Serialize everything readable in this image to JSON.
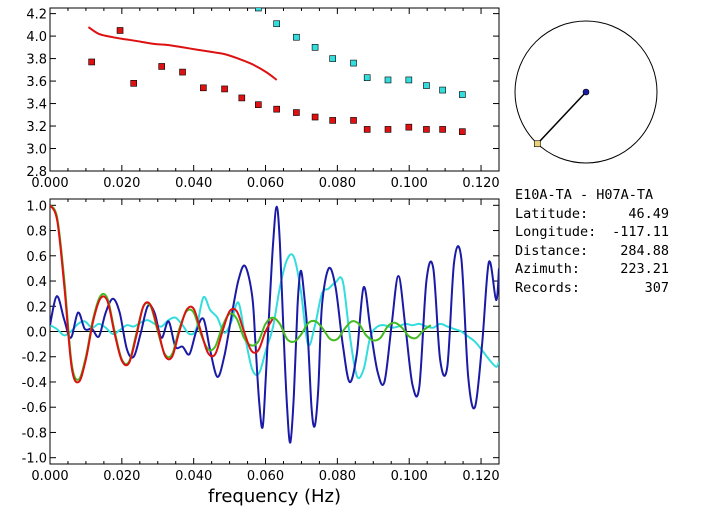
{
  "station_info": {
    "pair": "E10A-TA  -  H07A-TA",
    "rows": [
      {
        "label": "Latitude:",
        "value": "46.49"
      },
      {
        "label": "Longitude:",
        "value": "-117.11"
      },
      {
        "label": "Distance:",
        "value": "284.88"
      },
      {
        "label": "Azimuth:",
        "value": "223.21"
      },
      {
        "label": "Records:",
        "value": "307"
      }
    ]
  },
  "map_inset": {
    "azimuth_deg": 223.21,
    "colors": {
      "circle": "#000000",
      "center": "#1a1aa6",
      "end": "#e8d27a"
    }
  },
  "colors": {
    "red": "#dd1111",
    "cyan": "#33dddd",
    "blue": "#1a1aa6",
    "green": "#44bb22",
    "red_marker": "#cc1111",
    "cyan_marker": "#33dddd"
  },
  "chart_data": [
    {
      "type": "scatter",
      "xlim": [
        0.0,
        0.125
      ],
      "ylim": [
        2.8,
        4.25
      ],
      "x_ticks": [
        "0.000",
        "0.020",
        "0.040",
        "0.060",
        "0.080",
        "0.100",
        "0.120"
      ],
      "y_ticks": [
        "2.8",
        "3.0",
        "3.2",
        "3.4",
        "3.6",
        "3.8",
        "4.0",
        "4.2"
      ],
      "series": [
        {
          "marker": "square",
          "color": "red",
          "points": [
            [
              0.0116,
              3.77
            ],
            [
              0.0195,
              4.05
            ],
            [
              0.0233,
              3.58
            ],
            [
              0.0311,
              3.73
            ],
            [
              0.0369,
              3.68
            ],
            [
              0.0427,
              3.54
            ],
            [
              0.0486,
              3.53
            ],
            [
              0.0534,
              3.45
            ],
            [
              0.058,
              3.39
            ],
            [
              0.0631,
              3.35
            ],
            [
              0.0686,
              3.32
            ],
            [
              0.0738,
              3.28
            ],
            [
              0.0787,
              3.25
            ],
            [
              0.0845,
              3.25
            ],
            [
              0.0883,
              3.17
            ],
            [
              0.0941,
              3.17
            ],
            [
              0.0999,
              3.19
            ],
            [
              0.1048,
              3.17
            ],
            [
              0.1093,
              3.17
            ],
            [
              0.1148,
              3.15
            ]
          ]
        },
        {
          "marker": "square",
          "color": "cyan",
          "points": [
            [
              0.058,
              4.25
            ],
            [
              0.0631,
              4.11
            ],
            [
              0.0686,
              3.99
            ],
            [
              0.0738,
              3.9
            ],
            [
              0.0787,
              3.8
            ],
            [
              0.0845,
              3.76
            ],
            [
              0.0883,
              3.63
            ],
            [
              0.0941,
              3.61
            ],
            [
              0.0999,
              3.61
            ],
            [
              0.1048,
              3.56
            ],
            [
              0.1093,
              3.52
            ],
            [
              0.1148,
              3.48
            ]
          ]
        },
        {
          "marker": "line",
          "color": "red",
          "points": [
            [
              0.0107,
              4.08
            ],
            [
              0.0136,
              4.02
            ],
            [
              0.0175,
              3.99
            ],
            [
              0.0214,
              3.97
            ],
            [
              0.0253,
              3.95
            ],
            [
              0.0292,
              3.93
            ],
            [
              0.0331,
              3.92
            ],
            [
              0.0369,
              3.9
            ],
            [
              0.0408,
              3.88
            ],
            [
              0.0447,
              3.86
            ],
            [
              0.0486,
              3.84
            ],
            [
              0.0524,
              3.8
            ],
            [
              0.0563,
              3.75
            ],
            [
              0.0602,
              3.68
            ],
            [
              0.0631,
              3.61
            ]
          ]
        }
      ]
    },
    {
      "type": "line",
      "xlabel": "frequency (Hz)",
      "xlim": [
        0.0,
        0.125
      ],
      "ylim": [
        -1.05,
        1.05
      ],
      "x_ticks": [
        "0.000",
        "0.020",
        "0.040",
        "0.060",
        "0.080",
        "0.100",
        "0.120"
      ],
      "y_ticks": [
        "1.0",
        "0.8",
        "0.6",
        "0.4",
        "0.2",
        "0.0",
        "-0.2",
        "-0.4",
        "-0.6",
        "-0.8",
        "-1.0"
      ],
      "zero_line": true,
      "series": [
        {
          "color": "cyan",
          "x": [
            0.0,
            0.0019,
            0.0039,
            0.0058,
            0.0078,
            0.0097,
            0.0117,
            0.0136,
            0.0155,
            0.0175,
            0.0194,
            0.0214,
            0.0233,
            0.0252,
            0.0272,
            0.0291,
            0.031,
            0.033,
            0.0349,
            0.0369,
            0.0388,
            0.0407,
            0.0427,
            0.0446,
            0.0466,
            0.0485,
            0.0504,
            0.0524,
            0.0543,
            0.0563,
            0.0582,
            0.0601,
            0.0621,
            0.064,
            0.066,
            0.0679,
            0.0698,
            0.0718,
            0.0737,
            0.0757,
            0.0776,
            0.0795,
            0.0815,
            0.0834,
            0.0854,
            0.0873,
            0.0892,
            0.0912,
            0.0931,
            0.0951,
            0.097,
            0.0989,
            0.1009,
            0.1028,
            0.1048,
            0.1067,
            0.1086,
            0.1106,
            0.1125,
            0.1145,
            0.1164,
            0.1183,
            0.1203,
            0.1222,
            0.1242,
            0.125
          ],
          "y": [
            0.05,
            0.02,
            -0.03,
            0.0,
            0.06,
            0.08,
            0.03,
            0.06,
            0.03,
            -0.02,
            0.01,
            0.05,
            0.04,
            0.07,
            0.09,
            0.06,
            0.04,
            0.09,
            0.11,
            0.05,
            -0.02,
            0.02,
            0.27,
            0.17,
            0.11,
            -0.01,
            0.07,
            0.23,
            -0.04,
            -0.3,
            -0.33,
            -0.15,
            0.04,
            0.35,
            0.57,
            0.59,
            0.33,
            -0.1,
            0.04,
            0.3,
            0.34,
            0.39,
            0.4,
            -0.02,
            -0.35,
            -0.3,
            -0.04,
            0.04,
            0.05,
            0.03,
            0.04,
            0.06,
            0.05,
            0.06,
            0.04,
            0.03,
            0.06,
            0.04,
            0.02,
            0.0,
            -0.04,
            -0.08,
            -0.15,
            -0.22,
            -0.28,
            -0.24
          ]
        },
        {
          "color": "blue",
          "x": [
            0.0,
            0.0019,
            0.0039,
            0.0058,
            0.0078,
            0.0097,
            0.0117,
            0.0136,
            0.0155,
            0.0175,
            0.0194,
            0.0214,
            0.0233,
            0.0252,
            0.0272,
            0.0291,
            0.031,
            0.033,
            0.0349,
            0.0369,
            0.0388,
            0.0407,
            0.0427,
            0.0446,
            0.0466,
            0.0485,
            0.0504,
            0.0524,
            0.0543,
            0.0563,
            0.0572,
            0.0582,
            0.0592,
            0.0601,
            0.0611,
            0.0621,
            0.0631,
            0.064,
            0.065,
            0.066,
            0.0669,
            0.0679,
            0.0689,
            0.0698,
            0.0708,
            0.0718,
            0.0728,
            0.0737,
            0.0747,
            0.0757,
            0.0776,
            0.0795,
            0.0815,
            0.0834,
            0.0854,
            0.0873,
            0.0892,
            0.0912,
            0.0931,
            0.0951,
            0.097,
            0.0989,
            0.1009,
            0.1028,
            0.1048,
            0.1067,
            0.1086,
            0.1106,
            0.1125,
            0.1145,
            0.1164,
            0.1183,
            0.1203,
            0.1222,
            0.1242,
            0.125
          ],
          "y": [
            0.05,
            0.28,
            0.1,
            -0.05,
            0.15,
            0.02,
            0.02,
            -0.04,
            0.15,
            0.26,
            0.15,
            -0.14,
            -0.2,
            -0.02,
            0.2,
            0.15,
            -0.05,
            0.08,
            -0.12,
            -0.12,
            -0.18,
            0.0,
            0.1,
            -0.15,
            -0.36,
            -0.2,
            0.1,
            0.4,
            0.52,
            0.28,
            -0.1,
            -0.55,
            -0.76,
            -0.35,
            0.2,
            0.7,
            0.99,
            0.7,
            0.0,
            -0.6,
            -0.88,
            -0.5,
            0.2,
            0.48,
            0.28,
            -0.05,
            -0.6,
            -0.75,
            -0.45,
            0.2,
            0.5,
            0.35,
            -0.1,
            -0.4,
            -0.18,
            0.35,
            0.02,
            -0.32,
            -0.4,
            0.05,
            0.44,
            0.05,
            -0.42,
            -0.44,
            0.4,
            0.5,
            -0.22,
            -0.28,
            0.55,
            0.58,
            -0.35,
            -0.6,
            -0.1,
            0.55,
            0.25,
            0.5
          ]
        },
        {
          "color": "green",
          "x": [
            0.0,
            0.002,
            0.004,
            0.006,
            0.008,
            0.01,
            0.012,
            0.014,
            0.016,
            0.018,
            0.02,
            0.022,
            0.024,
            0.026,
            0.028,
            0.03,
            0.032,
            0.034,
            0.036,
            0.038,
            0.04,
            0.042,
            0.044,
            0.046,
            0.048,
            0.05,
            0.052,
            0.054,
            0.056,
            0.058,
            0.06,
            0.062,
            0.064,
            0.066,
            0.068,
            0.07,
            0.072,
            0.074,
            0.076,
            0.078,
            0.08,
            0.082,
            0.084,
            0.086,
            0.088,
            0.09,
            0.092,
            0.094,
            0.096,
            0.098,
            0.1,
            0.102,
            0.104,
            0.106
          ],
          "y": [
            1.0,
            0.9,
            0.4,
            -0.25,
            -0.38,
            -0.2,
            0.1,
            0.28,
            0.26,
            0.0,
            -0.22,
            -0.24,
            -0.02,
            0.2,
            0.2,
            0.0,
            -0.18,
            -0.18,
            0.02,
            0.16,
            0.15,
            -0.02,
            -0.14,
            -0.12,
            0.04,
            0.14,
            0.1,
            -0.05,
            -0.11,
            -0.08,
            0.06,
            0.11,
            0.06,
            -0.06,
            -0.08,
            -0.02,
            0.07,
            0.08,
            0.02,
            -0.06,
            -0.06,
            0.02,
            0.08,
            0.06,
            -0.03,
            -0.07,
            -0.05,
            0.04,
            0.07,
            0.03,
            -0.04,
            -0.05,
            0.01,
            0.05
          ]
        },
        {
          "color": "red",
          "x": [
            0.0,
            0.002,
            0.004,
            0.006,
            0.008,
            0.01,
            0.012,
            0.014,
            0.016,
            0.018,
            0.02,
            0.022,
            0.024,
            0.026,
            0.028,
            0.03,
            0.032,
            0.034,
            0.036,
            0.038,
            0.04,
            0.042,
            0.044,
            0.046,
            0.048,
            0.05,
            0.052,
            0.054,
            0.056,
            0.058,
            0.06,
            0.062
          ],
          "y": [
            1.0,
            0.88,
            0.35,
            -0.28,
            -0.4,
            -0.22,
            0.08,
            0.26,
            0.24,
            -0.02,
            -0.23,
            -0.25,
            -0.04,
            0.2,
            0.21,
            0.02,
            -0.19,
            -0.2,
            0.0,
            0.17,
            0.18,
            0.0,
            -0.17,
            -0.18,
            0.0,
            0.16,
            0.16,
            0.0,
            -0.15,
            -0.15,
            0.0,
            0.1
          ]
        }
      ]
    }
  ]
}
